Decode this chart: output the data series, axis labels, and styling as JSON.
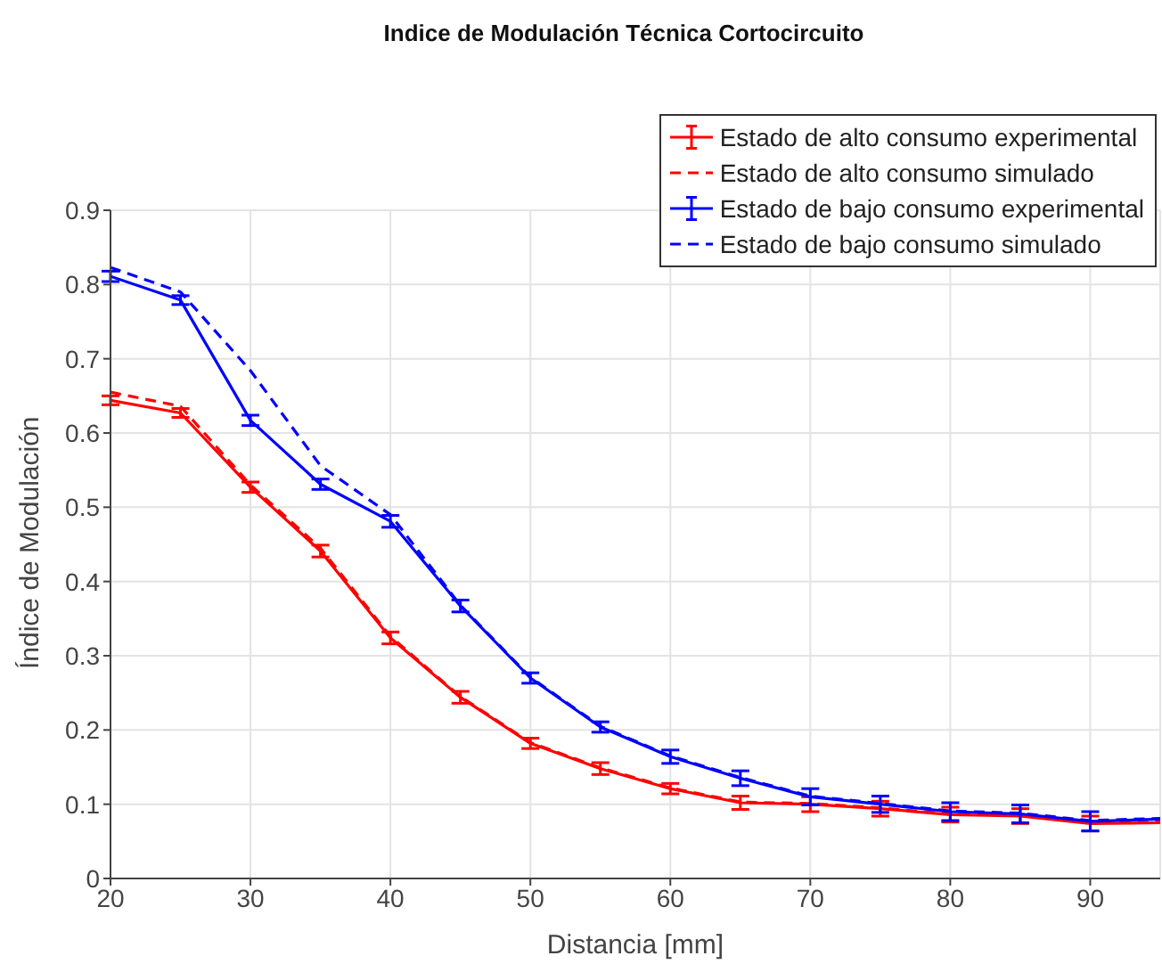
{
  "chart_data": {
    "type": "line",
    "title": "Indice de Modulación Técnica Cortocircuito",
    "xlabel": "Distancia [mm]",
    "ylabel": "Índice de Modulación",
    "x": [
      20,
      25,
      30,
      35,
      40,
      45,
      50,
      55,
      60,
      65,
      70,
      75,
      80,
      85,
      90,
      95
    ],
    "xlim": [
      20,
      95
    ],
    "xticks": [
      20,
      30,
      40,
      50,
      60,
      70,
      80,
      90
    ],
    "ylim": [
      0,
      0.9
    ],
    "yticks": [
      0,
      0.1,
      0.2,
      0.3,
      0.4,
      0.5,
      0.6,
      0.7,
      0.8,
      0.9
    ],
    "grid": true,
    "legend": "top right",
    "series": [
      {
        "name": "Estado de alto consumo experimental",
        "color": "#ff0000",
        "line_style": "solid",
        "values": [
          0.644,
          0.627,
          0.527,
          0.441,
          0.324,
          0.244,
          0.182,
          0.148,
          0.121,
          0.102,
          0.1,
          0.094,
          0.086,
          0.084,
          0.074,
          0.075
        ],
        "errors": [
          0.006,
          0.006,
          0.007,
          0.008,
          0.008,
          0.008,
          0.007,
          0.008,
          0.007,
          0.009,
          0.01,
          0.01,
          0.01,
          0.01,
          0.01,
          null
        ]
      },
      {
        "name": "Estado de alto consumo simulado",
        "color": "#ff0000",
        "line_style": "dashed",
        "values": [
          0.655,
          0.636,
          0.53,
          0.445,
          0.326,
          0.245,
          0.183,
          0.149,
          0.122,
          0.103,
          0.101,
          0.095,
          0.087,
          0.085,
          0.075,
          0.076
        ]
      },
      {
        "name": "Estado de bajo consumo experimental",
        "color": "#0000ff",
        "line_style": "solid",
        "values": [
          0.811,
          0.779,
          0.617,
          0.531,
          0.481,
          0.367,
          0.27,
          0.204,
          0.164,
          0.135,
          0.11,
          0.1,
          0.09,
          0.087,
          0.077,
          0.08
        ],
        "errors": [
          0.007,
          0.006,
          0.007,
          0.007,
          0.008,
          0.008,
          0.007,
          0.007,
          0.009,
          0.01,
          0.011,
          0.011,
          0.012,
          0.012,
          0.013,
          null
        ]
      },
      {
        "name": "Estado de bajo consumo simulado",
        "color": "#0000ff",
        "line_style": "dashed",
        "values": [
          0.823,
          0.79,
          0.684,
          0.556,
          0.49,
          0.368,
          0.271,
          0.205,
          0.165,
          0.136,
          0.111,
          0.101,
          0.091,
          0.088,
          0.078,
          0.081
        ]
      }
    ]
  }
}
